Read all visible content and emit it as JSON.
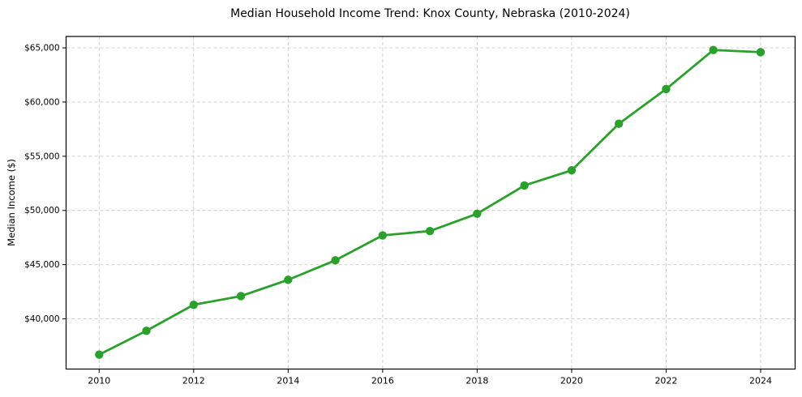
{
  "title": "Median Household Income Trend: Knox County, Nebraska (2010-2024)",
  "chart_data": {
    "type": "line",
    "title": "Median Household Income Trend: Knox County, Nebraska (2010-2024)",
    "xlabel": "",
    "ylabel": "Median Income ($)",
    "x": [
      2010,
      2011,
      2012,
      2013,
      2014,
      2015,
      2016,
      2017,
      2018,
      2019,
      2020,
      2021,
      2022,
      2023,
      2024
    ],
    "series": [
      {
        "name": "Median Household Income",
        "color": "#2ca02c",
        "values": [
          36700,
          38900,
          41300,
          42100,
          43600,
          45400,
          47700,
          48100,
          49700,
          52300,
          53700,
          58000,
          61200,
          64800,
          64600
        ]
      }
    ],
    "xticks": [
      2010,
      2012,
      2014,
      2016,
      2018,
      2020,
      2022,
      2024
    ],
    "yticks": [
      40000,
      45000,
      50000,
      55000,
      60000,
      65000
    ],
    "ytick_labels": [
      "$40,000",
      "$45,000",
      "$50,000",
      "$55,000",
      "$60,000",
      "$65,000"
    ],
    "xlim": [
      2009.3,
      2024.73
    ],
    "ylim": [
      35370,
      66050
    ],
    "grid": true,
    "grid_color": "#cccccc",
    "axis_color": "#000000",
    "background": "#ffffff",
    "legend": "none",
    "marker": "circle",
    "marker_radius": 5.2,
    "line_width": 2.8
  }
}
